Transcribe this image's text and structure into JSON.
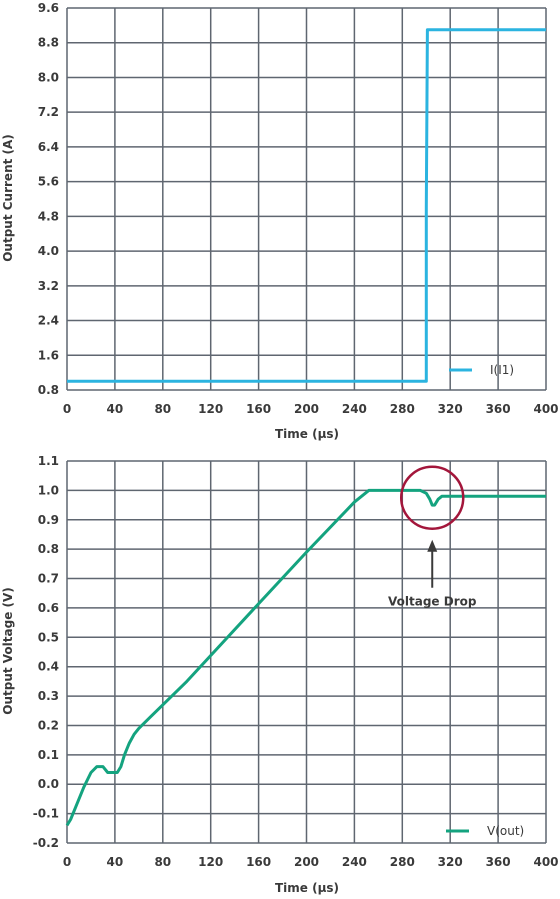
{
  "chart_data": [
    {
      "type": "line",
      "ylabel": "Output Current (A)",
      "xlabel": "Time (µs)",
      "xlim": [
        0,
        400
      ],
      "ylim": [
        0.8,
        9.6
      ],
      "xticks": [
        0,
        40,
        80,
        120,
        160,
        200,
        240,
        280,
        320,
        360,
        400
      ],
      "yticks": [
        0.8,
        1.6,
        2.4,
        3.2,
        4.0,
        4.8,
        5.6,
        6.4,
        7.2,
        8.0,
        8.8,
        9.6
      ],
      "ytick_labels": [
        "0.8",
        "1.6",
        "2.4",
        "3.2",
        "4.0",
        "4.8",
        "5.6",
        "6.4",
        "7.2",
        "8.0",
        "8.8",
        "9.6"
      ],
      "grid": true,
      "legend_position": "bottom-right",
      "series": [
        {
          "name": "I(I1)",
          "color": "#2bb4e0",
          "x": [
            0,
            300,
            300,
            301,
            400
          ],
          "y": [
            1.0,
            1.0,
            5.0,
            9.1,
            9.1
          ]
        }
      ]
    },
    {
      "type": "line",
      "ylabel": "Output Voltage (V)",
      "xlabel": "Time (µs)",
      "xlim": [
        0,
        400
      ],
      "ylim": [
        -0.2,
        1.1
      ],
      "xticks": [
        0,
        40,
        80,
        120,
        160,
        200,
        240,
        280,
        320,
        360,
        400
      ],
      "yticks": [
        -0.2,
        -0.1,
        0.0,
        0.1,
        0.2,
        0.3,
        0.4,
        0.5,
        0.6,
        0.7,
        0.8,
        0.9,
        1.0,
        1.1
      ],
      "ytick_labels": [
        "-0.2",
        "-0.1",
        "0.0",
        "0.1",
        "0.2",
        "0.3",
        "0.4",
        "0.5",
        "0.6",
        "0.7",
        "0.8",
        "0.9",
        "1.0",
        "1.1"
      ],
      "grid": true,
      "legend_position": "bottom-right",
      "series": [
        {
          "name": "V(out)",
          "color": "#14a37f",
          "x": [
            0,
            3,
            8,
            14,
            20,
            25,
            30,
            34,
            38,
            42,
            45,
            48,
            52,
            56,
            60,
            70,
            100,
            150,
            200,
            240,
            252,
            260,
            295,
            300,
            303,
            305,
            307,
            310,
            313,
            320,
            400
          ],
          "y": [
            -0.14,
            -0.12,
            -0.07,
            -0.01,
            0.04,
            0.06,
            0.06,
            0.04,
            0.04,
            0.04,
            0.06,
            0.1,
            0.14,
            0.17,
            0.19,
            0.23,
            0.35,
            0.57,
            0.79,
            0.96,
            1.0,
            1.0,
            1.0,
            0.99,
            0.97,
            0.95,
            0.95,
            0.97,
            0.98,
            0.98,
            0.98
          ]
        }
      ],
      "annotation": {
        "text": "Voltage Drop",
        "x": 305,
        "y": 0.975,
        "color": "#a3163b"
      }
    }
  ]
}
